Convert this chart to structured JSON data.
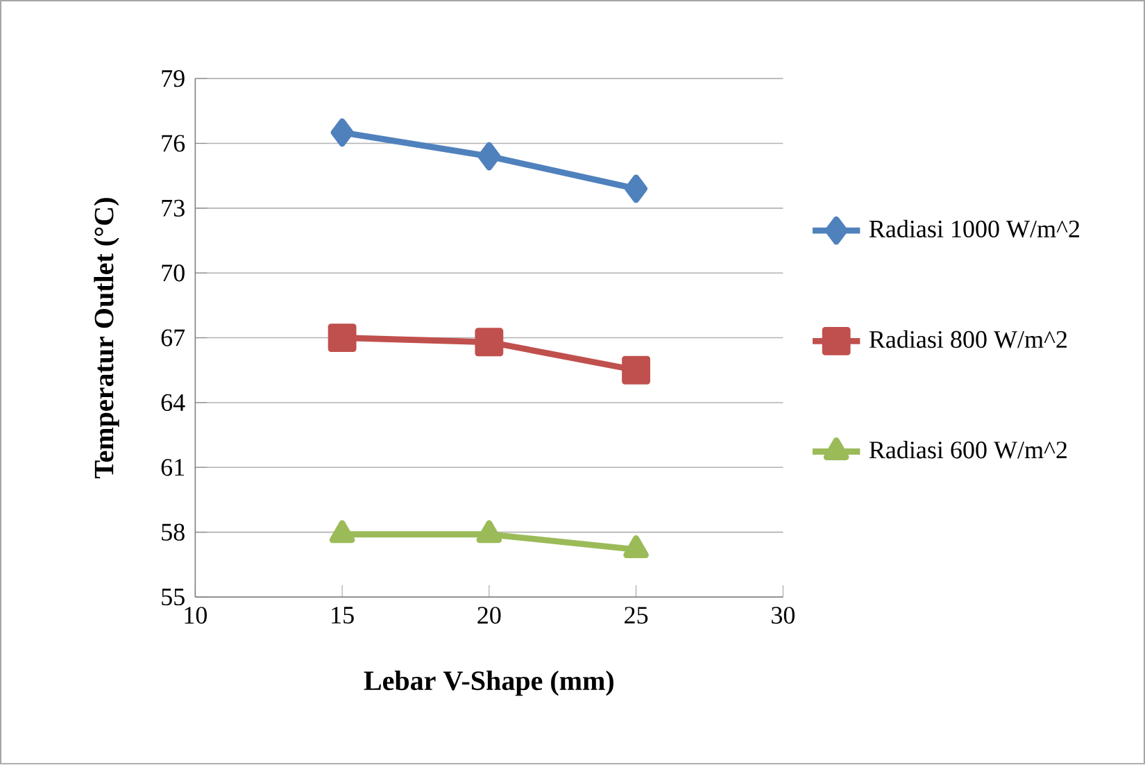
{
  "chart_data": {
    "type": "line",
    "xlabel": "Lebar V-Shape (mm)",
    "ylabel": "Temperatur Outlet (°C)",
    "x": [
      15,
      20,
      25
    ],
    "series": [
      {
        "name": "Radiasi 1000 W/m^2",
        "color": "#4f81bd",
        "marker": "diamond",
        "values": [
          76.5,
          75.4,
          73.9
        ]
      },
      {
        "name": "Radiasi 800 W/m^2",
        "color": "#c0504d",
        "marker": "square",
        "values": [
          67.0,
          66.8,
          65.5
        ]
      },
      {
        "name": "Radiasi 600 W/m^2",
        "color": "#9bbb59",
        "marker": "triangle",
        "values": [
          57.9,
          57.9,
          57.2
        ]
      }
    ],
    "xlim": [
      10,
      30
    ],
    "xticks": [
      10,
      15,
      20,
      25,
      30
    ],
    "ylim": [
      55,
      79
    ],
    "yticks": [
      55,
      58,
      61,
      64,
      67,
      70,
      73,
      76,
      79
    ],
    "grid": "y",
    "legend": "right",
    "line_style": "solid"
  }
}
